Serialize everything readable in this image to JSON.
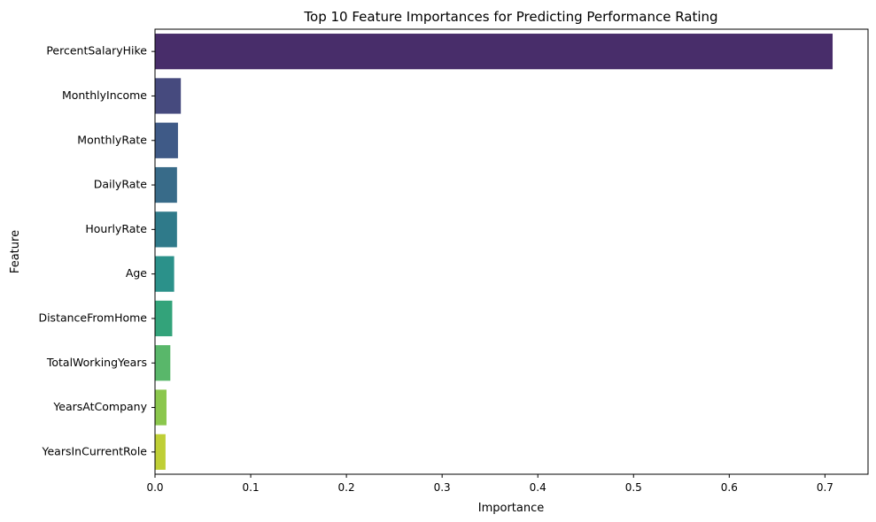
{
  "chart_data": {
    "type": "bar",
    "orientation": "horizontal",
    "title": "Top 10 Feature Importances for Predicting Performance Rating",
    "xlabel": "Importance",
    "ylabel": "Feature",
    "xlim": [
      0,
      0.745
    ],
    "xticks": [
      0.0,
      0.1,
      0.2,
      0.3,
      0.4,
      0.5,
      0.6,
      0.7
    ],
    "xtick_labels": [
      "0.0",
      "0.1",
      "0.2",
      "0.3",
      "0.4",
      "0.5",
      "0.6",
      "0.7"
    ],
    "grid": false,
    "categories": [
      "PercentSalaryHike",
      "MonthlyIncome",
      "MonthlyRate",
      "DailyRate",
      "HourlyRate",
      "Age",
      "DistanceFromHome",
      "TotalWorkingYears",
      "YearsAtCompany",
      "YearsInCurrentRole"
    ],
    "values": [
      0.708,
      0.027,
      0.024,
      0.023,
      0.023,
      0.02,
      0.018,
      0.016,
      0.012,
      0.011
    ],
    "colors": [
      "#482d6a",
      "#464a7e",
      "#3f5a87",
      "#386b89",
      "#2f7a8a",
      "#2b918a",
      "#33a37a",
      "#59b76a",
      "#8bc74d",
      "#bfcf36"
    ]
  }
}
